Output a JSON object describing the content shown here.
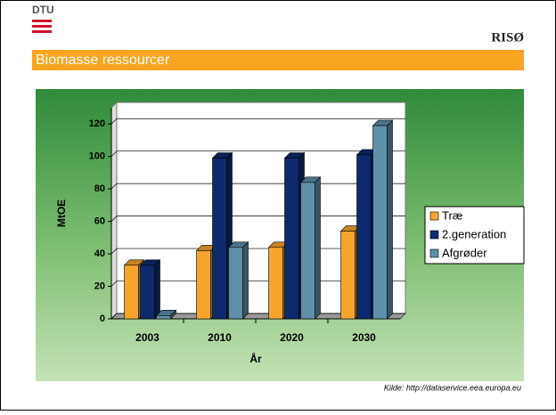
{
  "logo_left": "DTU",
  "logo_right": "RISØ",
  "slide_title": "Biomasse ressourcer",
  "source": "Kilde: http://dataservice.eea.europa.eu",
  "chart_data": {
    "type": "bar3d",
    "categories": [
      "2003",
      "2010",
      "2020",
      "2030"
    ],
    "series": [
      {
        "name": "Træ",
        "color": "#f7a52a",
        "values": [
          33,
          42,
          44,
          54
        ]
      },
      {
        "name": "2.generation",
        "color": "#0d2a6e",
        "values": [
          33,
          99,
          99,
          101
        ]
      },
      {
        "name": "Afgrøder",
        "color": "#5f90aa",
        "values": [
          2,
          44,
          84,
          119
        ]
      }
    ],
    "y_label": "MtOE",
    "x_label": "År",
    "ylim": [
      0,
      130
    ],
    "yticks": [
      0,
      20,
      40,
      60,
      80,
      100,
      120
    ],
    "grid": true,
    "legend": "right"
  }
}
